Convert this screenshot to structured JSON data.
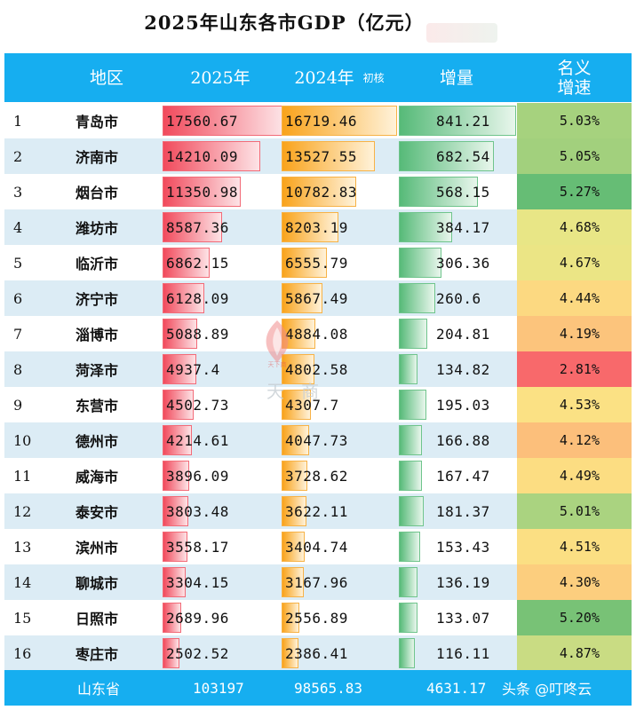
{
  "chart_data": {
    "type": "table",
    "title": "2025年山东各市GDP（亿元）",
    "headers": {
      "region": "地区",
      "y2025": "2025年",
      "y2024": "2024年",
      "y2024_note": "初核",
      "increase": "增量",
      "growth_line1": "名义",
      "growth_line2": "增速"
    },
    "rows": [
      {
        "rank": "1",
        "city": "青岛市",
        "gdp2025": 17560.67,
        "gdp2025_text": "17560.67",
        "gdp2024": 16719.46,
        "gdp2024_text": "16719.46",
        "inc": 841.21,
        "inc_text": "841.21",
        "rate": "5.03%",
        "rate_color": "#a6d27e"
      },
      {
        "rank": "2",
        "city": "济南市",
        "gdp2025": 14210.09,
        "gdp2025_text": "14210.09",
        "gdp2024": 13527.55,
        "gdp2024_text": "13527.55",
        "inc": 682.54,
        "inc_text": "682.54",
        "rate": "5.05%",
        "rate_color": "#a2d07d"
      },
      {
        "rank": "3",
        "city": "烟台市",
        "gdp2025": 11350.98,
        "gdp2025_text": "11350.98",
        "gdp2024": 10782.83,
        "gdp2024_text": "10782.83",
        "inc": 568.15,
        "inc_text": "568.15",
        "rate": "5.27%",
        "rate_color": "#66bd75"
      },
      {
        "rank": "4",
        "city": "潍坊市",
        "gdp2025": 8587.36,
        "gdp2025_text": "8587.36",
        "gdp2024": 8203.19,
        "gdp2024_text": "8203.19",
        "inc": 384.17,
        "inc_text": "384.17",
        "rate": "4.68%",
        "rate_color": "#e8e686"
      },
      {
        "rank": "5",
        "city": "临沂市",
        "gdp2025": 6862.15,
        "gdp2025_text": "6862.15",
        "gdp2024": 6555.79,
        "gdp2024_text": "6555.79",
        "inc": 306.36,
        "inc_text": "306.36",
        "rate": "4.67%",
        "rate_color": "#ebe585"
      },
      {
        "rank": "6",
        "city": "济宁市",
        "gdp2025": 6128.09,
        "gdp2025_text": "6128.09",
        "gdp2024": 5867.49,
        "gdp2024_text": "5867.49",
        "inc": 260.6,
        "inc_text": "260.6",
        "rate": "4.44%",
        "rate_color": "#fcd981"
      },
      {
        "rank": "7",
        "city": "淄博市",
        "gdp2025": 5088.89,
        "gdp2025_text": "5088.89",
        "gdp2024": 4884.08,
        "gdp2024_text": "4884.08",
        "inc": 204.81,
        "inc_text": "204.81",
        "rate": "4.19%",
        "rate_color": "#fcc47c"
      },
      {
        "rank": "8",
        "city": "菏泽市",
        "gdp2025": 4937.4,
        "gdp2025_text": "4937.4",
        "gdp2024": 4802.58,
        "gdp2024_text": "4802.58",
        "inc": 134.82,
        "inc_text": "134.82",
        "rate": "2.81%",
        "rate_color": "#f8696b"
      },
      {
        "rank": "9",
        "city": "东营市",
        "gdp2025": 4502.73,
        "gdp2025_text": "4502.73",
        "gdp2024": 4307.7,
        "gdp2024_text": "4307.7",
        "inc": 195.03,
        "inc_text": "195.03",
        "rate": "4.53%",
        "rate_color": "#fbe184"
      },
      {
        "rank": "10",
        "city": "德州市",
        "gdp2025": 4214.61,
        "gdp2025_text": "4214.61",
        "gdp2024": 4047.73,
        "gdp2024_text": "4047.73",
        "inc": 166.88,
        "inc_text": "166.88",
        "rate": "4.12%",
        "rate_color": "#fcbf7b"
      },
      {
        "rank": "11",
        "city": "威海市",
        "gdp2025": 3896.09,
        "gdp2025_text": "3896.09",
        "gdp2024": 3728.62,
        "gdp2024_text": "3728.62",
        "inc": 167.47,
        "inc_text": "167.47",
        "rate": "4.49%",
        "rate_color": "#fcdd82"
      },
      {
        "rank": "12",
        "city": "泰安市",
        "gdp2025": 3803.48,
        "gdp2025_text": "3803.48",
        "gdp2024": 3622.11,
        "gdp2024_text": "3622.11",
        "inc": 181.37,
        "inc_text": "181.37",
        "rate": "5.01%",
        "rate_color": "#aad380"
      },
      {
        "rank": "13",
        "city": "滨州市",
        "gdp2025": 3558.17,
        "gdp2025_text": "3558.17",
        "gdp2024": 3404.74,
        "gdp2024_text": "3404.74",
        "inc": 153.43,
        "inc_text": "153.43",
        "rate": "4.51%",
        "rate_color": "#fbdf83"
      },
      {
        "rank": "14",
        "city": "聊城市",
        "gdp2025": 3304.15,
        "gdp2025_text": "3304.15",
        "gdp2024": 3167.96,
        "gdp2024_text": "3167.96",
        "inc": 136.19,
        "inc_text": "136.19",
        "rate": "4.30%",
        "rate_color": "#fcce7e"
      },
      {
        "rank": "15",
        "city": "日照市",
        "gdp2025": 2689.96,
        "gdp2025_text": "2689.96",
        "gdp2024": 2556.89,
        "gdp2024_text": "2556.89",
        "inc": 133.07,
        "inc_text": "133.07",
        "rate": "5.20%",
        "rate_color": "#78c276"
      },
      {
        "rank": "16",
        "city": "枣庄市",
        "gdp2025": 2502.52,
        "gdp2025_text": "2502.52",
        "gdp2024": 2386.41,
        "gdp2024_text": "2386.41",
        "inc": 116.11,
        "inc_text": "116.11",
        "rate": "4.87%",
        "rate_color": "#c9dc83"
      }
    ],
    "total": {
      "label": "山东省",
      "gdp2025": "103197",
      "gdp2024": "98565.83",
      "inc": "4631.17"
    },
    "bar_max": {
      "gdp2025": 17560.67,
      "gdp2024": 16719.46,
      "inc": 841.21
    }
  },
  "watermark": {
    "source": "头条 @叮咚云",
    "center_text": "天",
    "center_text2": "商",
    "logo_text": "天下商"
  },
  "colors": {
    "header_bg": "#16aef0",
    "row_alt": "#dcecf5"
  }
}
